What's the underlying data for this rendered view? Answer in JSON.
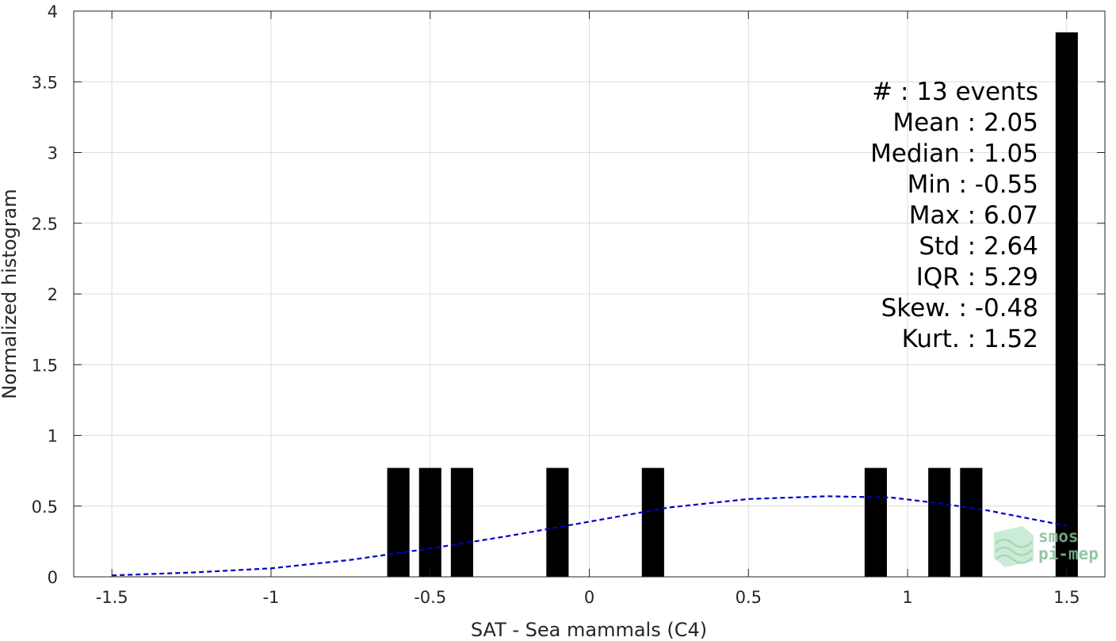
{
  "chart_data": {
    "type": "bar",
    "xlabel": "SAT - Sea mammals (C4)",
    "ylabel": "Normalized histogram",
    "xlim": [
      -1.62,
      1.62
    ],
    "ylim": [
      0,
      4
    ],
    "x_ticks": [
      -1.5,
      -1,
      -0.5,
      0,
      0.5,
      1,
      1.5
    ],
    "x_tick_labels": [
      "-1.5",
      "-1",
      "-0.5",
      "0",
      "0.5",
      "1",
      "1.5"
    ],
    "y_ticks": [
      0,
      0.5,
      1,
      1.5,
      2,
      2.5,
      3,
      3.5,
      4
    ],
    "y_tick_labels": [
      "0",
      "0.5",
      "1",
      "1.5",
      "2",
      "2.5",
      "3",
      "3.5",
      "4"
    ],
    "grid": true,
    "bar_width": 0.07,
    "bar_color": "#000000",
    "bars": [
      {
        "x": -0.6,
        "value": 0.77
      },
      {
        "x": -0.5,
        "value": 0.77
      },
      {
        "x": -0.4,
        "value": 0.77
      },
      {
        "x": -0.1,
        "value": 0.77
      },
      {
        "x": 0.2,
        "value": 0.77
      },
      {
        "x": 0.9,
        "value": 0.77
      },
      {
        "x": 1.1,
        "value": 0.77
      },
      {
        "x": 1.2,
        "value": 0.77
      },
      {
        "x": 1.5,
        "value": 3.85
      }
    ],
    "fit_curve": {
      "style": "dashed",
      "color": "#0000cc",
      "x": [
        -1.5,
        -1.25,
        -1.0,
        -0.75,
        -0.5,
        -0.25,
        0.0,
        0.25,
        0.5,
        0.75,
        0.95,
        1.1,
        1.25,
        1.5
      ],
      "y": [
        0.01,
        0.03,
        0.06,
        0.12,
        0.2,
        0.29,
        0.39,
        0.49,
        0.55,
        0.57,
        0.56,
        0.52,
        0.47,
        0.36
      ]
    },
    "stats": [
      "#  : 13 events",
      "Mean : 2.05",
      "Median : 1.05",
      "Min : -0.55",
      "Max : 6.07",
      "Std : 2.64",
      "IQR : 5.29",
      "Skew. : -0.48",
      "Kurt. : 1.52"
    ]
  },
  "logo": {
    "line1": "smos",
    "line2": "pi-mep",
    "color": "#7fbf95"
  }
}
